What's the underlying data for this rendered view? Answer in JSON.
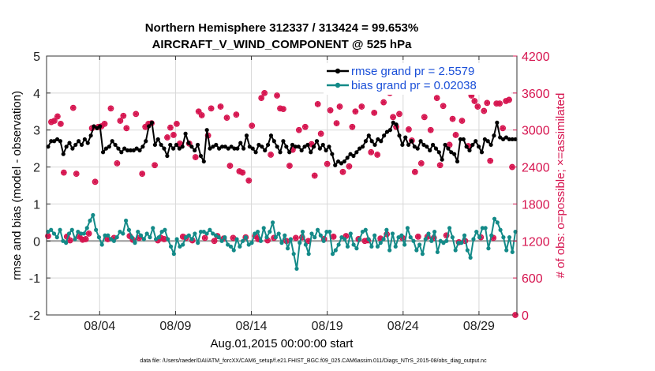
{
  "chart_data": {
    "type": "line",
    "title": "Northern Hemisphere 312337 / 313424 = 99.653%",
    "subtitle": "AIRCRAFT_V_WIND_COMPONENT @ 525 hPa",
    "xlabel": "Aug.01,2015 00:00:00 start",
    "ylabel": "rmse and bias (model - observation)",
    "y2label": "# of obs: o=possible; ×=assimilated",
    "xlim": [
      0,
      31
    ],
    "ylim": [
      -2,
      5
    ],
    "y2lim": [
      0,
      4200
    ],
    "xticks": [
      3.5,
      8.5,
      13.5,
      18.5,
      23.5,
      28.5
    ],
    "xticklabels": [
      "08/04",
      "08/09",
      "08/14",
      "08/19",
      "08/24",
      "08/29"
    ],
    "yticks": [
      -2,
      -1,
      0,
      1,
      2,
      3,
      4,
      5
    ],
    "yticklabels": [
      "-2",
      "-1",
      "0",
      "1",
      "2",
      "3",
      "4",
      "5"
    ],
    "y2ticks": [
      0,
      600,
      1200,
      1800,
      2400,
      3000,
      3600,
      4200
    ],
    "y2ticklabels": [
      "0",
      "600",
      "1200",
      "1800",
      "2400",
      "3000",
      "3600",
      "4200"
    ],
    "grid": true,
    "zero_line": 0,
    "legend_position": "top-right",
    "colors": {
      "rmse": "#000000",
      "bias": "#138a88",
      "obs": "#d6144f",
      "legend_text": "#1a4fd8",
      "grid": "#d8d8d8",
      "zero_line": "#9a9a9a"
    },
    "series": [
      {
        "name": "rmse grand pr = 2.5579",
        "marker": "filled-circle",
        "axis": "left",
        "values": [
          2.55,
          2.7,
          2.7,
          2.75,
          2.7,
          2.35,
          2.55,
          2.65,
          2.5,
          2.6,
          2.7,
          2.6,
          2.75,
          2.65,
          2.85,
          3.1,
          3.05,
          3.1,
          2.4,
          2.5,
          2.55,
          2.7,
          2.6,
          2.5,
          2.4,
          2.5,
          2.45,
          2.45,
          2.45,
          2.5,
          2.45,
          2.55,
          2.7,
          3.1,
          3.2,
          2.6,
          2.75,
          2.6,
          2.5,
          2.3,
          2.6,
          2.5,
          2.6,
          2.5,
          2.55,
          2.9,
          2.65,
          2.55,
          2.45,
          2.6,
          2.3,
          2.15,
          3.0,
          2.5,
          2.55,
          2.6,
          2.5,
          2.55,
          2.55,
          2.5,
          2.55,
          2.5,
          2.5,
          2.65,
          2.5,
          2.85,
          2.55,
          2.5,
          2.4,
          2.6,
          2.55,
          2.45,
          2.6,
          2.85,
          2.7,
          2.55,
          2.4,
          2.7,
          2.55,
          2.4,
          2.6,
          2.55,
          2.55,
          2.45,
          2.55,
          2.6,
          2.4,
          2.55,
          2.7,
          2.5,
          2.6,
          2.45,
          2.55,
          2.35,
          2.05,
          2.15,
          2.1,
          2.15,
          2.25,
          2.35,
          2.3,
          2.4,
          2.5,
          2.55,
          2.7,
          2.85,
          2.7,
          2.6,
          2.75,
          2.7,
          2.85,
          2.95,
          3.0,
          3.2,
          3.15,
          2.85,
          2.6,
          2.8,
          2.6,
          2.7,
          2.55,
          2.5,
          2.7,
          2.6,
          2.55,
          2.45,
          2.6,
          2.5,
          2.4,
          2.2,
          2.6,
          2.5,
          2.4,
          2.35,
          2.15,
          2.75,
          2.75,
          2.55,
          2.45,
          2.6,
          2.7,
          2.55,
          2.4,
          2.75,
          2.7,
          2.6,
          2.85,
          3.2,
          2.8,
          2.75,
          2.8,
          2.75,
          2.75,
          2.75
        ]
      },
      {
        "name": "bias grand pr = 0.02038",
        "marker": "filled-circle",
        "axis": "left",
        "values": [
          0.25,
          0.3,
          0.2,
          0.1,
          0.3,
          0.0,
          -0.05,
          0.2,
          0.3,
          0.05,
          0.25,
          0.2,
          0.2,
          0.35,
          0.55,
          0.7,
          0.3,
          0.1,
          -0.1,
          0.15,
          0.15,
          0.05,
          0.0,
          0.1,
          0.25,
          0.2,
          0.55,
          0.3,
          0.1,
          -0.05,
          0.25,
          0.15,
          0.05,
          0.2,
          0.1,
          0.35,
          0.05,
          0.1,
          0.25,
          0.3,
          0.05,
          -0.15,
          -0.35,
          0.05,
          -0.15,
          -0.1,
          0.1,
          0.15,
          0.05,
          0.2,
          -0.05,
          0.25,
          0.25,
          0.2,
          0.3,
          0.2,
          0.15,
          0.1,
          0.0,
          0.1,
          -0.1,
          -0.15,
          -0.25,
          0.05,
          -0.15,
          0.0,
          0.1,
          -0.1,
          -0.05,
          0.2,
          0.25,
          0.0,
          0.35,
          0.1,
          0.25,
          0.5,
          0.1,
          0.2,
          -0.05,
          0.15,
          -0.2,
          0.05,
          -0.35,
          -0.75,
          -0.05,
          0.25,
          -0.1,
          -0.35,
          0.2,
          0.1,
          0.3,
          0.15,
          0.0,
          0.25,
          0.25,
          -0.35,
          -0.25,
          -0.1,
          0.1,
          0.05,
          -0.15,
          0.2,
          -0.1,
          -0.2,
          0.05,
          0.25,
          0.3,
          0.05,
          -0.15,
          0.15,
          -0.15,
          -0.05,
          0.05,
          0.3,
          -0.25,
          0.2,
          -0.15,
          0.1,
          0.15,
          -0.1,
          0.35,
          0.1,
          0.0,
          -0.25,
          -0.1,
          -0.35,
          0.05,
          0.2,
          0.0,
          0.25,
          -0.3,
          0.0,
          -0.05,
          0.0,
          0.35,
          0.1,
          -0.25,
          -0.05,
          -0.05,
          0.15,
          -0.25,
          -0.45,
          0.05,
          0.25,
          0.1,
          0.35,
          0.35,
          -0.2,
          0.15,
          0.6,
          0.5,
          0.3,
          0.1,
          -0.25,
          0.1,
          -0.3,
          0.25
        ]
      }
    ],
    "obs": {
      "axis": "right",
      "possible_marker": "circle",
      "assimilated_marker": "asterisk",
      "values": [
        1280,
        3130,
        3150,
        3220,
        3100,
        2310,
        1270,
        1210,
        3360,
        2290,
        1270,
        1220,
        1230,
        1320,
        3030,
        2160,
        3050,
        3060,
        3100,
        1230,
        3350,
        1250,
        2460,
        3150,
        3230,
        3030,
        1280,
        1220,
        3260,
        1250,
        2290,
        3050,
        3100,
        3110,
        2430,
        1210,
        1250,
        1230,
        2880,
        3040,
        2920,
        3100,
        2780,
        1270,
        1250,
        2780,
        1210,
        2560,
        3300,
        3240,
        1250,
        2910,
        3350,
        1200,
        1280,
        3380,
        1240,
        3200,
        2420,
        1250,
        3250,
        2330,
        2310,
        1260,
        2180,
        3070,
        1280,
        1230,
        3520,
        3600,
        1210,
        2600,
        1250,
        3560,
        3350,
        3340,
        1200,
        2420,
        2680,
        1250,
        3000,
        1260,
        3050,
        1200,
        2770,
        2260,
        3420,
        2940,
        1230,
        2450,
        3320,
        1270,
        3110,
        3380,
        2320,
        1280,
        2410,
        3050,
        3300,
        1230,
        3380,
        1200,
        1210,
        2640,
        3280,
        2600,
        1240,
        3450,
        1310,
        3600,
        3210,
        3050,
        3260,
        1250,
        3660,
        3010,
        2830,
        2320,
        1270,
        2460,
        3210,
        1270,
        3000,
        1250,
        3520,
        2430,
        3390,
        1290,
        2760,
        3180,
        2920,
        1180,
        3150,
        1200,
        2740,
        3560,
        3470,
        3380,
        1260,
        3310,
        3440,
        2500,
        1250,
        3430,
        3430,
        3030,
        3470,
        3490,
        2400,
        0
      ]
    }
  }
}
